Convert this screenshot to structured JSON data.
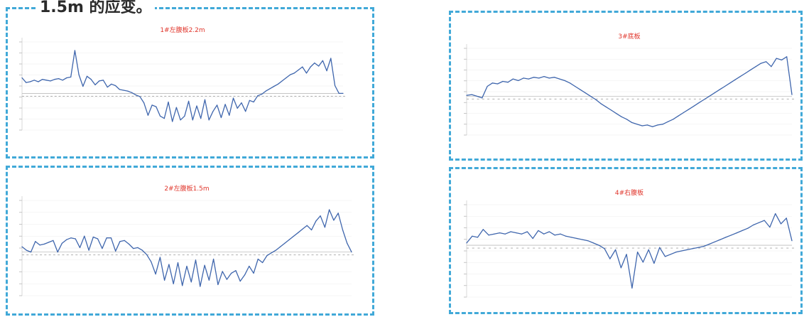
{
  "heading": "1.5m 的应变。",
  "colors": {
    "panel_border": "#41a9d8",
    "line": "#3f66ad",
    "title": "#e0352b",
    "axis": "#cfcfcf",
    "grid": "#ededed"
  },
  "chart_data": [
    {
      "type": "line",
      "title": "1#左腹板2.2m",
      "xlabel": "",
      "ylabel": "",
      "series": [
        {
          "values": [
            2,
            1.4,
            1.5,
            1.7,
            1.5,
            1.8,
            1.7,
            1.6,
            1.8,
            1.9,
            1.7,
            2.0,
            2.1,
            5.5,
            2.4,
            0.9,
            2.2,
            1.8,
            1.1,
            1.6,
            1.7,
            0.8,
            1.2,
            1.0,
            0.5,
            0.4,
            0.3,
            0.1,
            -0.2,
            -0.4,
            -1.2,
            -2.8,
            -1.5,
            -1.7,
            -2.9,
            -3.2,
            -1.1,
            -3.6,
            -1.8,
            -3.4,
            -2.9,
            -1.0,
            -3.4,
            -1.6,
            -3.2,
            -0.8,
            -3.4,
            -2.3,
            -1.5,
            -3.1,
            -1.4,
            -2.8,
            -0.6,
            -1.9,
            -1.2,
            -2.3,
            -0.9,
            -1.1,
            -0.3,
            -0.1,
            0.3,
            0.6,
            0.9,
            1.2,
            1.6,
            2.0,
            2.4,
            2.6,
            3.0,
            3.4,
            2.6,
            3.4,
            3.9,
            3.5,
            4.2,
            2.9,
            4.5,
            1.0,
            0.0,
            0.0
          ]
        }
      ]
    },
    {
      "type": "line",
      "title": "2#左腹板1.5m",
      "xlabel": "",
      "ylabel": "",
      "series": [
        {
          "values": [
            0.6,
            0.2,
            0.0,
            1.2,
            0.8,
            0.9,
            1.1,
            1.3,
            0.0,
            1.0,
            1.4,
            1.6,
            1.5,
            0.5,
            1.8,
            0.2,
            1.7,
            1.5,
            0.4,
            1.6,
            1.6,
            0.1,
            1.2,
            1.3,
            0.9,
            0.4,
            0.5,
            0.2,
            -0.3,
            -1.1,
            -2.5,
            -0.6,
            -3.2,
            -1.4,
            -3.6,
            -1.2,
            -3.8,
            -1.6,
            -3.4,
            -0.9,
            -3.9,
            -1.5,
            -3.2,
            -0.8,
            -3.7,
            -2.2,
            -3.1,
            -2.4,
            -2.1,
            -3.3,
            -2.6,
            -1.6,
            -2.4,
            -0.8,
            -1.2,
            -0.4,
            -0.1,
            0.2,
            0.6,
            1.0,
            1.4,
            1.8,
            2.2,
            2.6,
            3.0,
            2.5,
            3.5,
            4.1,
            2.8,
            4.8,
            3.6,
            4.4,
            2.5,
            1.0,
            0.0
          ]
        }
      ]
    },
    {
      "type": "line",
      "title": "3#底板",
      "xlabel": "",
      "ylabel": "",
      "series": [
        {
          "values": [
            0.1,
            0.2,
            0.0,
            -0.2,
            1.2,
            1.6,
            1.5,
            1.8,
            1.7,
            2.1,
            1.9,
            2.2,
            2.1,
            2.3,
            2.2,
            2.4,
            2.2,
            2.3,
            2.1,
            1.9,
            1.6,
            1.2,
            0.8,
            0.4,
            0.0,
            -0.4,
            -0.9,
            -1.3,
            -1.7,
            -2.1,
            -2.5,
            -2.8,
            -3.2,
            -3.4,
            -3.6,
            -3.5,
            -3.7,
            -3.5,
            -3.4,
            -3.1,
            -2.8,
            -2.4,
            -2.0,
            -1.6,
            -1.2,
            -0.8,
            -0.4,
            0.0,
            0.4,
            0.8,
            1.2,
            1.6,
            2.0,
            2.4,
            2.8,
            3.2,
            3.6,
            4.0,
            4.2,
            3.6,
            4.6,
            4.4,
            4.8,
            0.2
          ]
        }
      ]
    },
    {
      "type": "line",
      "title": "4#右腹板",
      "xlabel": "",
      "ylabel": "",
      "series": [
        {
          "values": [
            0.2,
            0.8,
            0.7,
            1.4,
            0.9,
            1.0,
            1.1,
            1.0,
            1.2,
            1.1,
            1.0,
            1.2,
            0.6,
            1.3,
            1.0,
            1.2,
            0.9,
            1.0,
            0.8,
            0.7,
            0.6,
            0.5,
            0.4,
            0.2,
            0.0,
            -0.3,
            -1.2,
            -0.4,
            -2.0,
            -0.8,
            -3.8,
            -0.6,
            -1.5,
            -0.4,
            -1.6,
            -0.2,
            -1.0,
            -0.8,
            -0.6,
            -0.5,
            -0.4,
            -0.3,
            -0.2,
            -0.1,
            0.1,
            0.3,
            0.5,
            0.7,
            0.9,
            1.1,
            1.3,
            1.5,
            1.8,
            2.0,
            2.2,
            1.6,
            2.8,
            1.9,
            2.4,
            0.4
          ]
        }
      ]
    }
  ]
}
